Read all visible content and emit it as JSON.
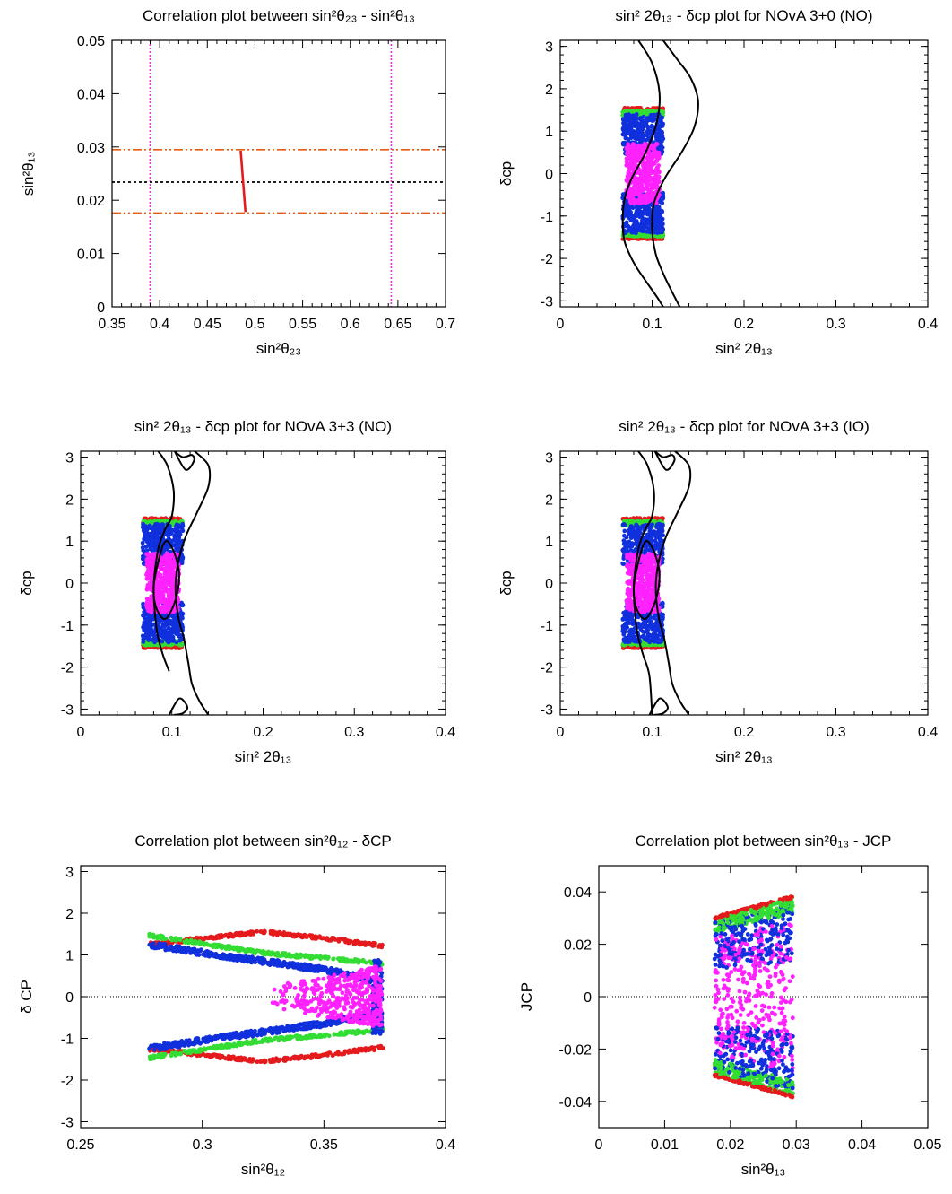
{
  "colors": {
    "red": "#e41a1c",
    "green": "#33dd33",
    "blue": "#1030dd",
    "magenta": "#ff22ff",
    "orange": "#e85a10",
    "vline": "#dd33dd",
    "contour": "#000000"
  },
  "chart_data": [
    {
      "id": "p1",
      "type": "scatter",
      "title": "Correlation plot between sin²θ₂₃ - sin²θ₁₃",
      "xlabel": "sin²θ₂₃",
      "ylabel": "sin²θ₁₃",
      "xlim": [
        0.35,
        0.7
      ],
      "ylim": [
        0,
        0.05
      ],
      "xticks": [
        0.35,
        0.4,
        0.45,
        0.5,
        0.55,
        0.6,
        0.65,
        0.7
      ],
      "xticklabels": [
        "0.35",
        "0.4",
        "0.45",
        "0.5",
        "0.55",
        "0.6",
        "0.65",
        "0.7"
      ],
      "yticks": [
        0,
        0.01,
        0.02,
        0.03,
        0.04,
        0.05
      ],
      "yticklabels": [
        "0",
        "0.01",
        "0.02",
        "0.03",
        "0.04",
        "0.05"
      ],
      "vlines": [
        0.39,
        0.643
      ],
      "hlines_bounds": [
        0.0176,
        0.0295
      ],
      "hline_center": 0.0234,
      "segment": {
        "x": [
          0.485,
          0.49
        ],
        "y": [
          0.0293,
          0.0178
        ]
      }
    },
    {
      "id": "p2",
      "type": "scatter",
      "title": "sin² 2θ₁₃ - δcp plot for NOvA 3+0 (NO)",
      "xlabel": "sin² 2θ₁₃",
      "ylabel": "δcp",
      "xlim": [
        0,
        0.4
      ],
      "ylim": [
        -3.14,
        3.14
      ],
      "xticks": [
        0,
        0.1,
        0.2,
        0.3,
        0.4
      ],
      "xticklabels": [
        "0",
        "0.1",
        "0.2",
        "0.3",
        "0.4"
      ],
      "yticks": [
        -3,
        -2,
        -1,
        0,
        1,
        2,
        3
      ],
      "yticklabels": [
        "-3",
        "-2",
        "-1",
        "0",
        "1",
        "2",
        "3"
      ],
      "band": {
        "x": [
          0.068,
          0.112
        ],
        "red": 1.55,
        "green": 1.38,
        "blue": 1.05,
        "magenta": 0.7
      },
      "contours": [
        {
          "x": [
            0.085,
            0.1,
            0.108,
            0.105,
            0.093,
            0.078,
            0.07,
            0.068,
            0.07,
            0.08,
            0.092,
            0.105,
            0.112
          ],
          "y": [
            3.14,
            2.6,
            1.9,
            1.2,
            0.5,
            -0.1,
            -0.6,
            -1.1,
            -1.6,
            -2.1,
            -2.5,
            -2.9,
            -3.14
          ]
        },
        {
          "x": [
            0.112,
            0.127,
            0.142,
            0.15,
            0.146,
            0.132,
            0.114,
            0.102,
            0.1,
            0.104,
            0.113,
            0.122,
            0.13
          ],
          "y": [
            3.14,
            2.7,
            2.25,
            1.7,
            1.1,
            0.5,
            -0.1,
            -0.7,
            -1.3,
            -1.9,
            -2.4,
            -2.8,
            -3.14
          ]
        }
      ]
    },
    {
      "id": "p3",
      "type": "scatter",
      "title": "sin² 2θ₁₃ - δcp plot for NOvA 3+3 (NO)",
      "xlabel": "sin² 2θ₁₃",
      "ylabel": "δcp",
      "xlim": [
        0,
        0.4
      ],
      "ylim": [
        -3.14,
        3.14
      ],
      "xticks": [
        0,
        0.1,
        0.2,
        0.3,
        0.4
      ],
      "xticklabels": [
        "0",
        "0.1",
        "0.2",
        "0.3",
        "0.4"
      ],
      "yticks": [
        -3,
        -2,
        -1,
        0,
        1,
        2,
        3
      ],
      "yticklabels": [
        "-3",
        "-2",
        "-1",
        "0",
        "1",
        "2",
        "3"
      ],
      "band": {
        "x": [
          0.068,
          0.112
        ],
        "red": 1.55,
        "green": 1.38,
        "blue": 1.05,
        "magenta": 0.7
      },
      "contours": [
        {
          "x": [
            0.085,
            0.095,
            0.102,
            0.1,
            0.093,
            0.086,
            0.082,
            0.08,
            0.081,
            0.084,
            0.09,
            0.097
          ],
          "y": [
            3.14,
            2.8,
            2.2,
            1.6,
            1.3,
            0.9,
            0.4,
            -0.1,
            -0.6,
            -1.2,
            -1.7,
            -2.1
          ]
        },
        {
          "x": [
            0.125,
            0.14,
            0.14,
            0.128,
            0.115,
            0.107,
            0.104,
            0.107,
            0.113,
            0.118,
            0.122,
            0.13,
            0.14
          ],
          "y": [
            3.14,
            2.8,
            2.3,
            1.7,
            1.1,
            0.5,
            -0.1,
            -0.8,
            -1.3,
            -1.9,
            -2.4,
            -2.8,
            -3.14
          ]
        },
        {
          "x": [
            0.103,
            0.115,
            0.124,
            0.122,
            0.112,
            0.103
          ],
          "y": [
            3.14,
            2.7,
            2.9,
            3.05,
            3.0,
            3.14
          ],
          "closed": false
        },
        {
          "x": [
            0.097,
            0.108,
            0.117,
            0.112,
            0.102
          ],
          "y": [
            -3.14,
            -2.75,
            -2.95,
            -3.1,
            -3.14
          ]
        },
        {
          "x": [
            0.09,
            0.085,
            0.08,
            0.083,
            0.093,
            0.104,
            0.108,
            0.103,
            0.095,
            0.09
          ],
          "y": [
            0.9,
            0.5,
            -0.1,
            -0.6,
            -0.85,
            -0.4,
            0.2,
            0.7,
            1.0,
            0.9
          ]
        }
      ]
    },
    {
      "id": "p4",
      "type": "scatter",
      "title": "sin² 2θ₁₃ - δcp plot for NOvA 3+3 (IO)",
      "xlabel": "sin² 2θ₁₃",
      "ylabel": "δcp",
      "xlim": [
        0,
        0.4
      ],
      "ylim": [
        -3.14,
        3.14
      ],
      "xticks": [
        0,
        0.1,
        0.2,
        0.3,
        0.4
      ],
      "xticklabels": [
        "0",
        "0.1",
        "0.2",
        "0.3",
        "0.4"
      ],
      "yticks": [
        -3,
        -2,
        -1,
        0,
        1,
        2,
        3
      ],
      "yticklabels": [
        "-3",
        "-2",
        "-1",
        "0",
        "1",
        "2",
        "3"
      ],
      "band": {
        "x": [
          0.068,
          0.112
        ],
        "red": 1.55,
        "green": 1.38,
        "blue": 1.05,
        "magenta": 0.7
      },
      "contours": [
        {
          "x": [
            0.085,
            0.095,
            0.102,
            0.1,
            0.093,
            0.086,
            0.082,
            0.08,
            0.081,
            0.084,
            0.09,
            0.097,
            0.1
          ],
          "y": [
            3.14,
            2.8,
            2.2,
            1.6,
            1.3,
            0.9,
            0.4,
            -0.1,
            -0.6,
            -1.2,
            -1.7,
            -2.2,
            -3.14
          ]
        },
        {
          "x": [
            0.125,
            0.14,
            0.14,
            0.128,
            0.115,
            0.107,
            0.104,
            0.107,
            0.113,
            0.118,
            0.122,
            0.13,
            0.14
          ],
          "y": [
            3.14,
            2.8,
            2.3,
            1.7,
            1.1,
            0.5,
            -0.1,
            -0.8,
            -1.3,
            -1.9,
            -2.4,
            -2.8,
            -3.14
          ]
        },
        {
          "x": [
            0.103,
            0.115,
            0.124,
            0.122,
            0.112,
            0.103
          ],
          "y": [
            3.14,
            2.7,
            2.9,
            3.05,
            3.0,
            3.14
          ]
        },
        {
          "x": [
            0.097,
            0.108,
            0.117,
            0.112,
            0.102
          ],
          "y": [
            -3.14,
            -2.75,
            -2.95,
            -3.1,
            -3.14
          ]
        },
        {
          "x": [
            0.09,
            0.085,
            0.08,
            0.083,
            0.093,
            0.104,
            0.108,
            0.103,
            0.095,
            0.09
          ],
          "y": [
            0.9,
            0.5,
            -0.1,
            -0.6,
            -0.85,
            -0.4,
            0.2,
            0.7,
            1.0,
            0.9
          ]
        }
      ]
    },
    {
      "id": "p5",
      "type": "scatter",
      "title": "Correlation plot between sin²θ₁₂ - δCP",
      "xlabel": "sin²θ₁₂",
      "ylabel": "δ CP",
      "xlim": [
        0.25,
        0.4
      ],
      "ylim": [
        -3.14,
        3.14
      ],
      "xticks": [
        0.25,
        0.3,
        0.35,
        0.4
      ],
      "xticklabels": [
        "0.25",
        "0.3",
        "0.35",
        "0.4"
      ],
      "yticks": [
        -3,
        -2,
        -1,
        0,
        1,
        2,
        3
      ],
      "yticklabels": [
        "-3",
        "-2",
        "-1",
        "0",
        "1",
        "2",
        "3"
      ],
      "zero_line": true,
      "series": [
        {
          "color": "red",
          "x": [
            0.278,
            0.3,
            0.325,
            0.35,
            0.374
          ],
          "y": [
            1.25,
            1.4,
            1.55,
            1.4,
            1.22
          ],
          "mirror": true
        },
        {
          "color": "green",
          "x": [
            0.278,
            0.3,
            0.325,
            0.35,
            0.374
          ],
          "y": [
            1.47,
            1.27,
            1.05,
            0.92,
            0.8
          ],
          "mirror": true
        },
        {
          "color": "blue",
          "x": [
            0.278,
            0.3,
            0.325,
            0.35,
            0.374
          ],
          "y": [
            1.25,
            1.05,
            0.85,
            0.65,
            0.35
          ],
          "mirror": true
        }
      ],
      "magenta_cloud": {
        "x": [
          0.328,
          0.374
        ],
        "y": [
          -0.75,
          0.75
        ]
      }
    },
    {
      "id": "p6",
      "type": "scatter",
      "title": "Correlation plot between sin²θ₁₃ - JCP",
      "xlabel": "sin²θ₁₃",
      "ylabel": "JCP",
      "xlim": [
        0,
        0.05
      ],
      "ylim": [
        -0.05,
        0.05
      ],
      "xticks": [
        0,
        0.01,
        0.02,
        0.03,
        0.04,
        0.05
      ],
      "xticklabels": [
        "0",
        "0.01",
        "0.02",
        "0.03",
        "0.04",
        "0.05"
      ],
      "yticks": [
        -0.04,
        -0.02,
        0,
        0.02,
        0.04
      ],
      "yticklabels": [
        "-0.04",
        "-0.02",
        "0",
        "0.02",
        "0.04"
      ],
      "zero_line": true,
      "band": {
        "x": [
          0.0176,
          0.0295
        ],
        "redTop": [
          0.0305,
          0.0385
        ]
      }
    }
  ]
}
